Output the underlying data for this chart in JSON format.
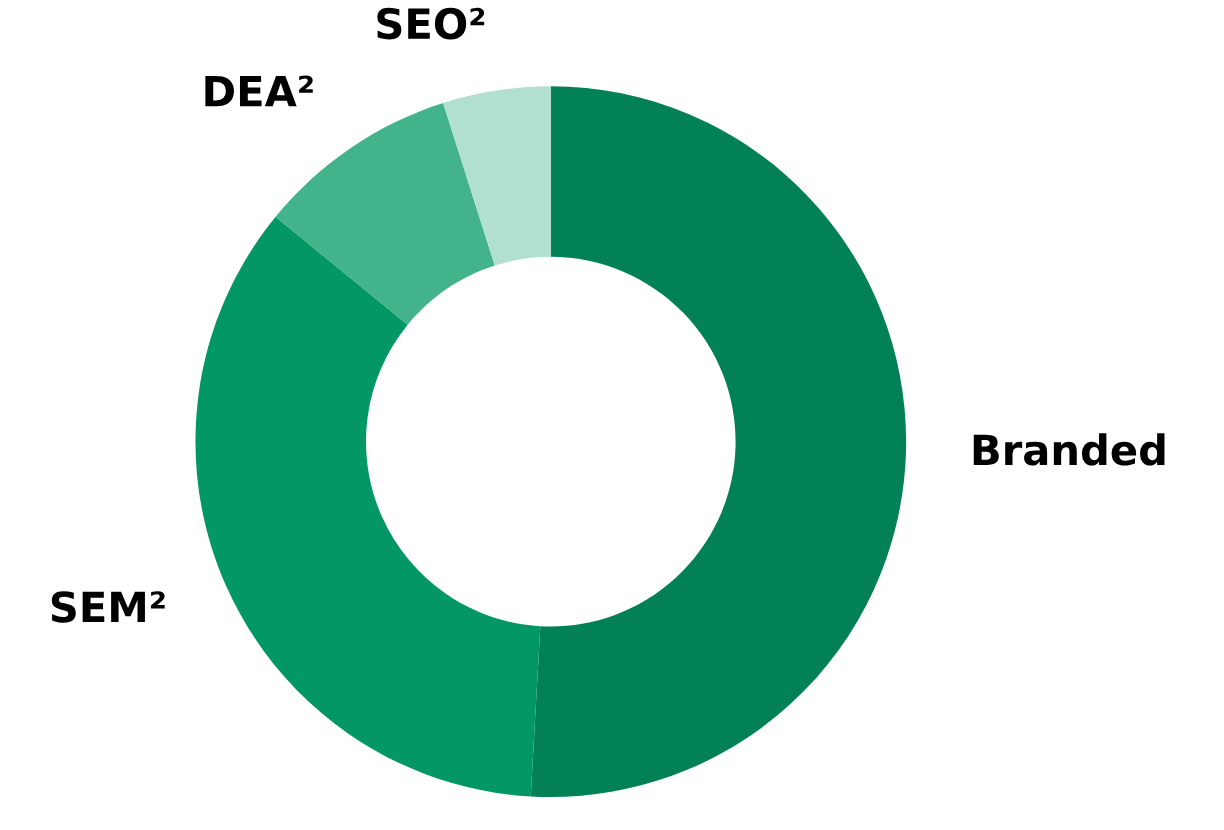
{
  "chart_data": {
    "type": "donut",
    "categories": [
      "Branded",
      "SEM²",
      "DEA²",
      "SEO²"
    ],
    "values": [
      50.9,
      35.0,
      9.2,
      4.9
    ],
    "colors": [
      "#028157",
      "#029765",
      "#43b38c",
      "#b2e0d0"
    ]
  }
}
